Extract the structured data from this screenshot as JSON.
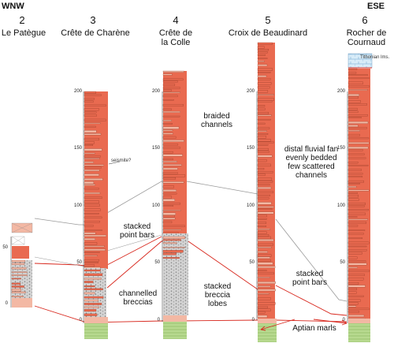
{
  "directions": {
    "west": "WNW",
    "east": "ESE"
  },
  "sections": [
    {
      "num": "2",
      "name": "Le Patègue"
    },
    {
      "num": "3",
      "name": "Crête de Charène"
    },
    {
      "num": "4",
      "name": "Crête de la Colle"
    },
    {
      "num": "5",
      "name": "Croix de Beaudinard"
    },
    {
      "num": "6",
      "name": "Rocher de Cournaud"
    }
  ],
  "scale_ticks": {
    "s2": [
      "50",
      "0"
    ],
    "s3": [
      "200",
      "150",
      "100",
      "50",
      "0"
    ],
    "s4": [
      "200",
      "150",
      "100",
      "50",
      "0"
    ],
    "s5": [
      "200",
      "150",
      "100",
      "50",
      "0"
    ],
    "s6": [
      "200",
      "150",
      "100",
      "50",
      "0"
    ]
  },
  "annotations": {
    "seismite": "seismite?",
    "tithonian": "Tithonian lms.",
    "braided": "braided channels",
    "distal": "distal fluvial fan evenly bedded few scattered channels",
    "stacked_point_bars_a": "stacked point bars",
    "channelled_breccias": "channelled breccias",
    "stacked_breccia_lobes": "stacked breccia lobes",
    "stacked_point_bars_b": "stacked point bars",
    "aptian": "Aptian marls"
  },
  "colors": {
    "red_beds": "#e96a50",
    "sand_pink": "#f3b8a4",
    "grey_breccia": "#c8c8c8",
    "green_marl": "#b7d98f",
    "blue_limestone": "#cfe6f5",
    "correlation_red": "#d8291f",
    "correlation_grey": "#9a9a9a"
  }
}
